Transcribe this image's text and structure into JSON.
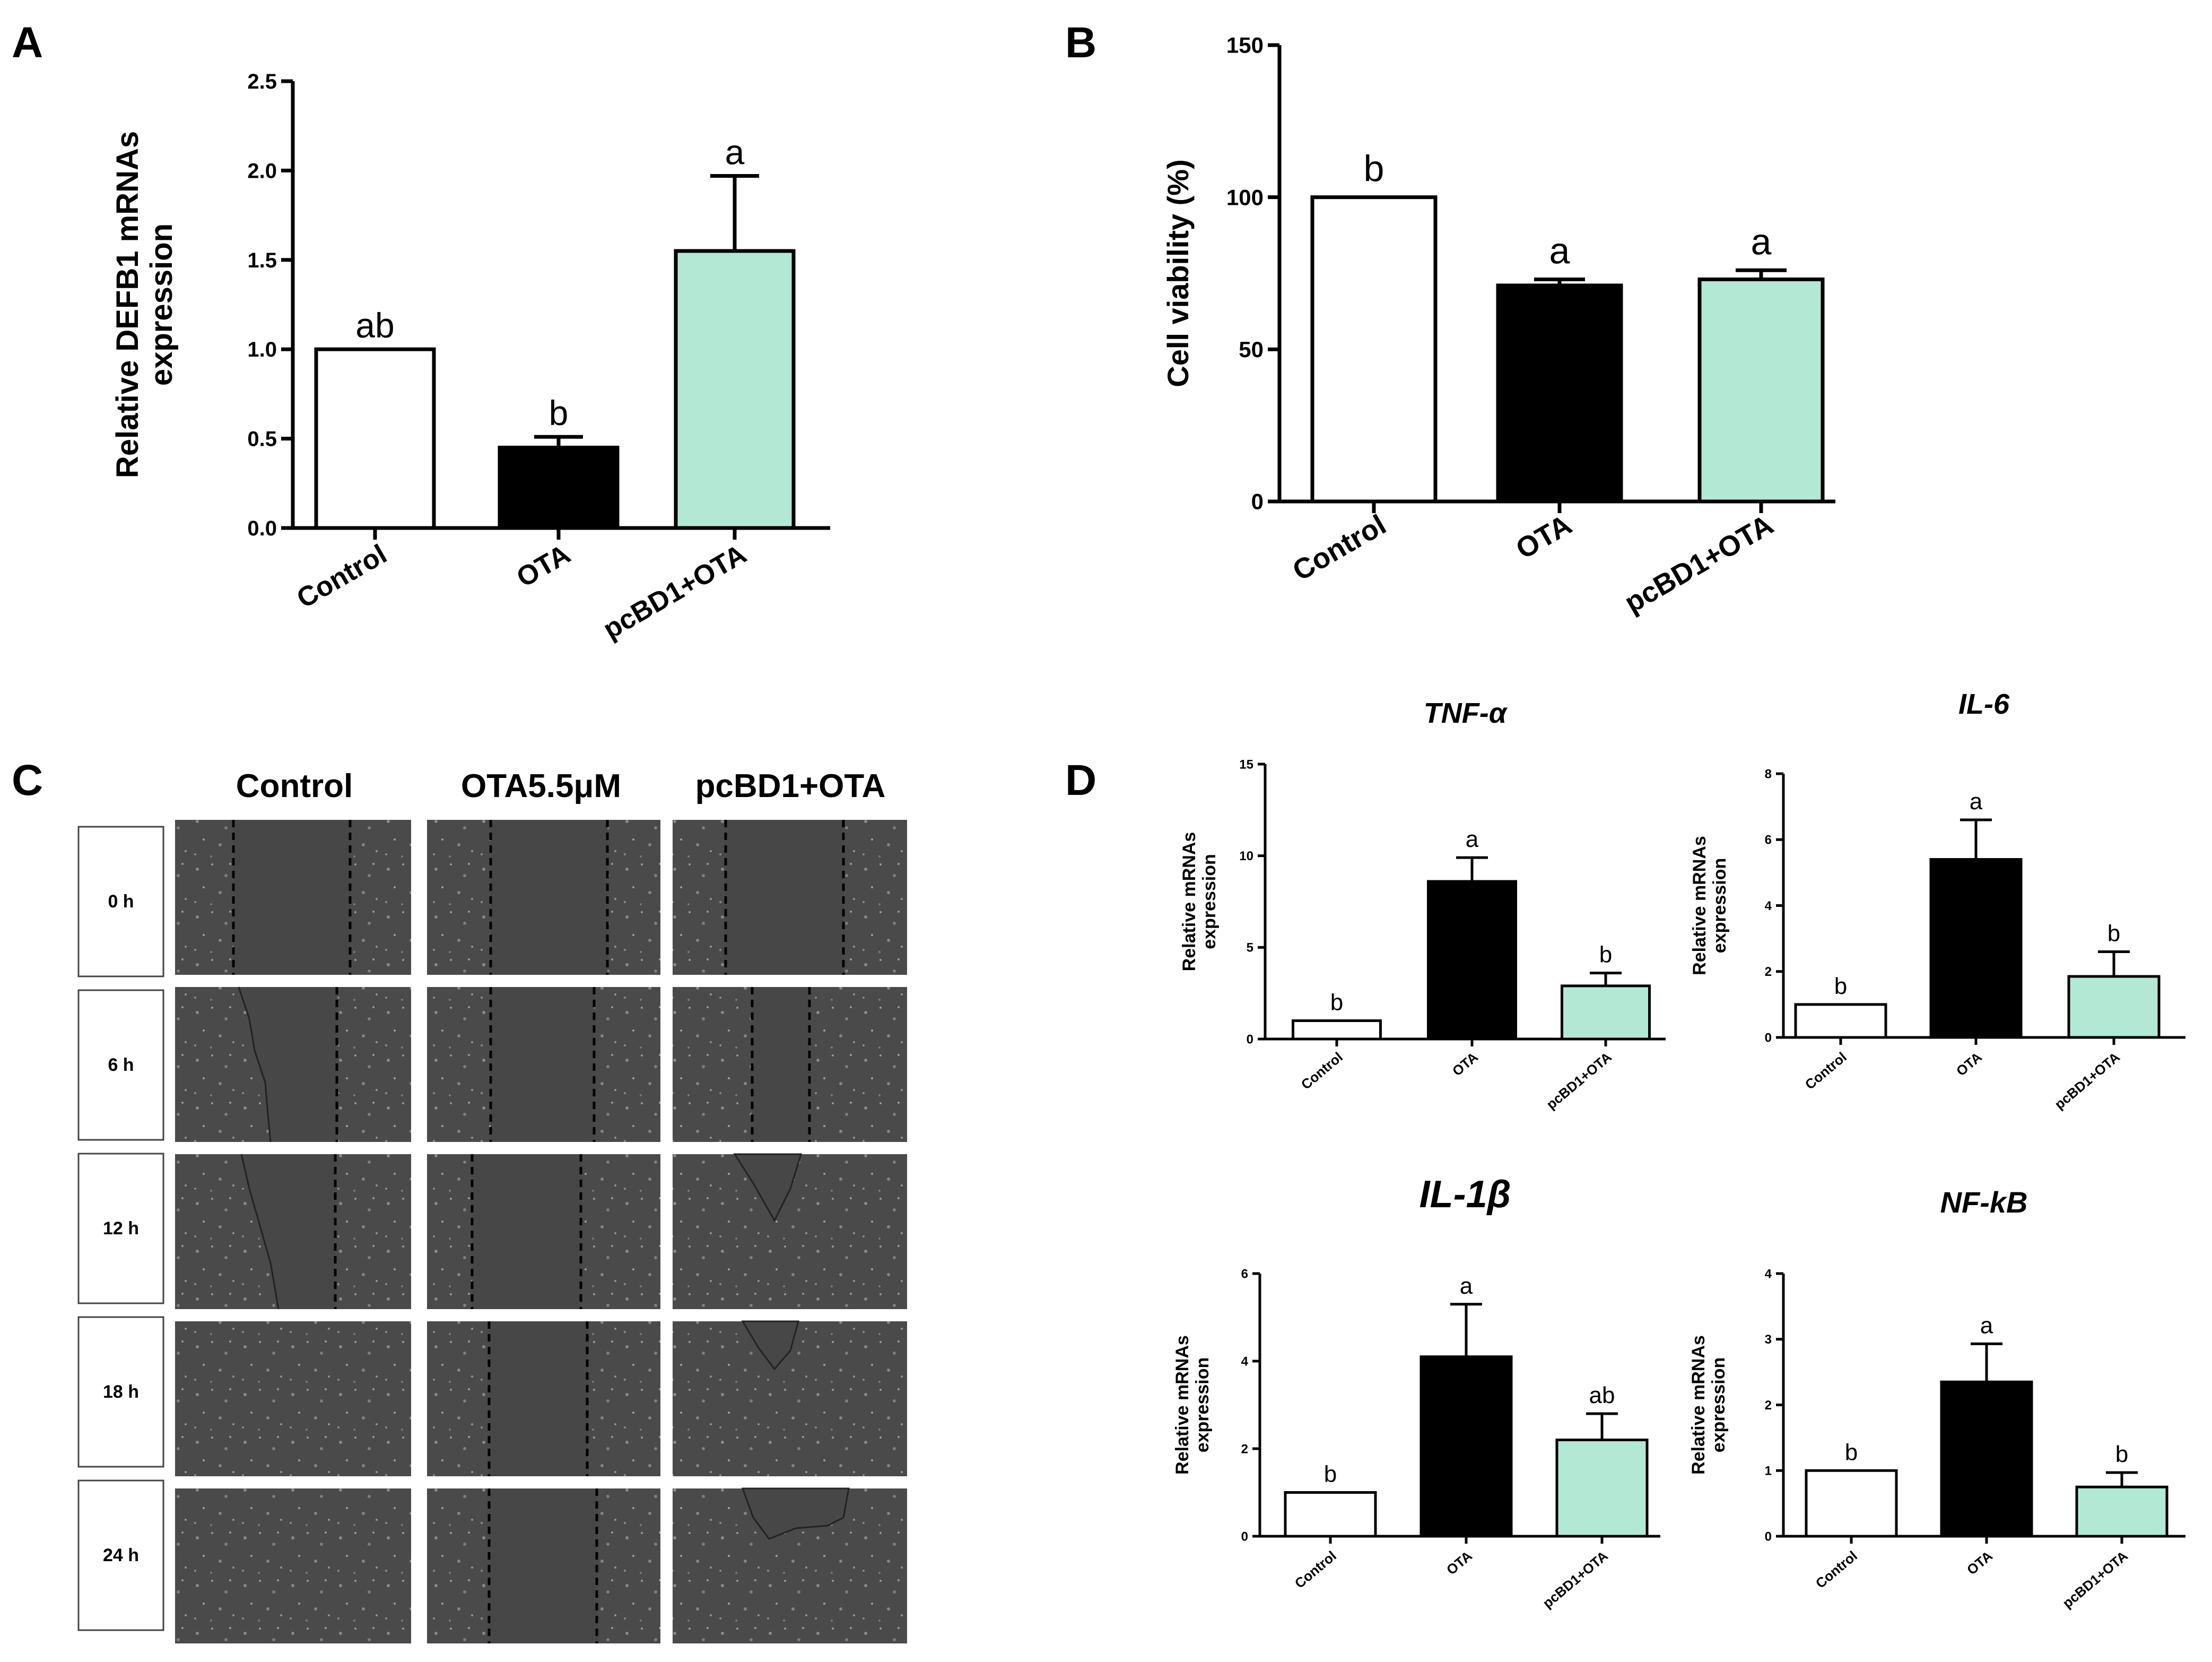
{
  "panels": {
    "A": "A",
    "B": "B",
    "C": "C",
    "D": "D"
  },
  "colors": {
    "control": "#ffffff",
    "ota": "#000000",
    "pcbd1_ota": "#b3e8d5",
    "cell_bg": "#474747"
  },
  "chart_data": [
    {
      "id": "A",
      "type": "bar",
      "title": "",
      "ylabel_lines": [
        "Relative DEFB1 mRNAs",
        "expression"
      ],
      "categories": [
        "Control",
        "OTA",
        "pcBD1+OTA"
      ],
      "values": [
        1.0,
        0.45,
        1.55
      ],
      "errors": [
        0,
        0.06,
        0.42
      ],
      "significance": [
        "ab",
        "b",
        "a"
      ],
      "ylim": [
        0,
        2.5
      ],
      "yticks": [
        "0.0",
        "0.5",
        "1.0",
        "1.5",
        "2.0",
        "2.5"
      ]
    },
    {
      "id": "B",
      "type": "bar",
      "title": "",
      "ylabel_lines": [
        "Cell viability (%)"
      ],
      "categories": [
        "Control",
        "OTA",
        "pcBD1+OTA"
      ],
      "values": [
        100,
        71,
        73
      ],
      "errors": [
        0,
        2,
        3
      ],
      "significance": [
        "b",
        "a",
        "a"
      ],
      "ylim": [
        0,
        150
      ],
      "yticks": [
        "0",
        "50",
        "100",
        "150"
      ]
    },
    {
      "id": "TNF",
      "type": "bar",
      "title": "TNF-α",
      "ylabel_lines": [
        "Relative mRNAs",
        "expression"
      ],
      "categories": [
        "Control",
        "OTA",
        "pcBD1+OTA"
      ],
      "values": [
        1.0,
        8.6,
        2.9
      ],
      "errors": [
        0,
        1.3,
        0.7
      ],
      "significance": [
        "b",
        "a",
        "b"
      ],
      "ylim": [
        0,
        15
      ],
      "yticks": [
        "0",
        "5",
        "10",
        "15"
      ]
    },
    {
      "id": "IL6",
      "type": "bar",
      "title": "IL-6",
      "ylabel_lines": [
        "Relative mRNAs",
        "expression"
      ],
      "categories": [
        "Control",
        "OTA",
        "pcBD1+OTA"
      ],
      "values": [
        1.0,
        5.4,
        1.85
      ],
      "errors": [
        0,
        1.2,
        0.75
      ],
      "significance": [
        "b",
        "a",
        "b"
      ],
      "ylim": [
        0,
        8
      ],
      "yticks": [
        "0",
        "2",
        "4",
        "6",
        "8"
      ]
    },
    {
      "id": "IL1B",
      "type": "bar",
      "title": "IL-1β",
      "ylabel_lines": [
        "Relative mRNAs",
        "expression"
      ],
      "categories": [
        "Control",
        "OTA",
        "pcBD1+OTA"
      ],
      "values": [
        1.0,
        4.1,
        2.2
      ],
      "errors": [
        0,
        1.2,
        0.6
      ],
      "significance": [
        "b",
        "a",
        "ab"
      ],
      "ylim": [
        0,
        6
      ],
      "yticks": [
        "0",
        "2",
        "4",
        "6"
      ]
    },
    {
      "id": "NFKB",
      "type": "bar",
      "title": "NF-kB",
      "ylabel_lines": [
        "Relative mRNAs",
        "expression"
      ],
      "categories": [
        "Control",
        "OTA",
        "pcBD1+OTA"
      ],
      "values": [
        1.0,
        2.35,
        0.75
      ],
      "errors": [
        0,
        0.58,
        0.22
      ],
      "significance": [
        "b",
        "a",
        "b"
      ],
      "ylim": [
        0,
        4
      ],
      "yticks": [
        "0",
        "1",
        "2",
        "3",
        "4"
      ]
    }
  ],
  "wound_assay": {
    "column_headers": [
      "Control",
      "OTA5.5μM",
      "pcBD1+OTA"
    ],
    "time_points": [
      "0 h",
      "6 h",
      "12 h",
      "18 h",
      "24 h"
    ]
  }
}
